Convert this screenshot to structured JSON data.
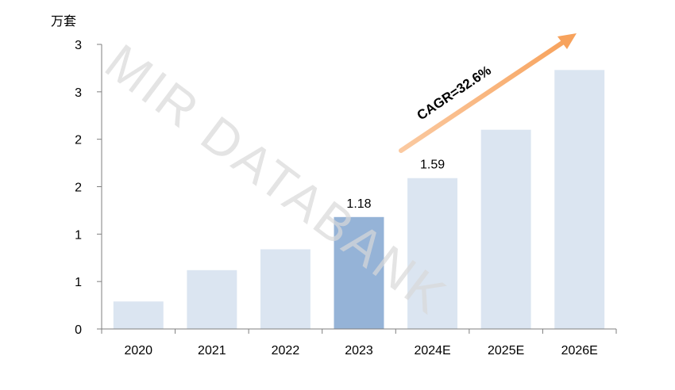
{
  "chart_data": {
    "type": "bar",
    "unit_label": "万套",
    "categories": [
      "2020",
      "2021",
      "2022",
      "2023",
      "2024E",
      "2025E",
      "2026E"
    ],
    "values": [
      0.29,
      0.62,
      0.84,
      1.18,
      1.59,
      2.1,
      2.73
    ],
    "data_labels": [
      "",
      "",
      "",
      "1.18",
      "1.59",
      "",
      ""
    ],
    "highlight_category": "2023",
    "ylim": [
      0,
      3.0
    ],
    "y_ticks": [
      0,
      0.5,
      1.0,
      1.5,
      2.0,
      2.5,
      3.0
    ],
    "y_tick_labels": [
      "0",
      "1",
      "1",
      "2",
      "2",
      "3",
      "3"
    ],
    "grid": false,
    "annotation": "CAGR=32.6%",
    "watermark": "MIR DATABANK",
    "colors": {
      "bar": "#dbe5f1",
      "bar_highlight": "#95b3d7",
      "arrow": "#fac090",
      "axis": "#7f7f7f",
      "text": "#000000",
      "watermark": "#d9d9d9"
    }
  }
}
